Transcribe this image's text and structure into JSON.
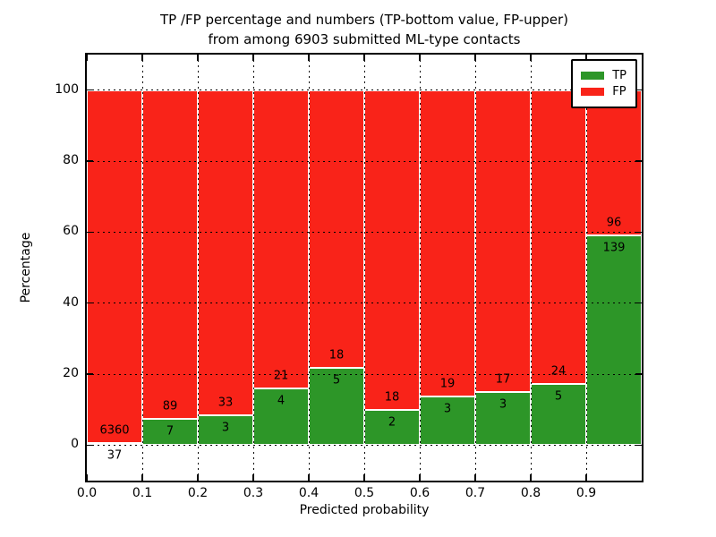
{
  "chart_data": {
    "type": "bar",
    "stacked": true,
    "orientation": "vertical",
    "title_line1": "TP /FP percentage and numbers (TP-bottom value, FP-upper)",
    "title_line2": "from among 6903 submitted ML-type contacts",
    "xlabel": "Predicted probability",
    "ylabel": "Percentage",
    "xlim": [
      0.0,
      1.0
    ],
    "ylim": [
      -10,
      110
    ],
    "xtick_values": [
      0.0,
      0.1,
      0.2,
      0.3,
      0.4,
      0.5,
      0.6,
      0.7,
      0.8,
      0.9
    ],
    "xtick_labels": [
      "0.0",
      "0.1",
      "0.2",
      "0.3",
      "0.4",
      "0.5",
      "0.6",
      "0.7",
      "0.8",
      "0.9"
    ],
    "ytick_values": [
      0,
      20,
      40,
      60,
      80,
      100
    ],
    "ytick_labels": [
      "0",
      "20",
      "40",
      "60",
      "80",
      "100"
    ],
    "bin_width": 0.1,
    "bins_start": [
      0.0,
      0.1,
      0.2,
      0.3,
      0.4,
      0.5,
      0.6,
      0.7,
      0.8,
      0.9
    ],
    "series": [
      {
        "name": "TP",
        "color": "#2d9628",
        "counts": [
          37,
          7,
          3,
          4,
          5,
          2,
          3,
          3,
          5,
          139
        ]
      },
      {
        "name": "FP",
        "color": "#f92319",
        "counts": [
          6360,
          89,
          33,
          21,
          18,
          18,
          19,
          17,
          24,
          96
        ]
      }
    ],
    "tp_percent": [
      0.58,
      7.29,
      8.33,
      16.0,
      21.74,
      10.0,
      13.64,
      15.0,
      17.24,
      59.15
    ],
    "total_contacts": 6903,
    "bar_edge_color": "#ffffff",
    "grid": {
      "on": true,
      "style": "dotted",
      "color": "#000000"
    },
    "legend": {
      "position": "upper right",
      "entries": [
        {
          "label": "TP",
          "color": "#2d9628"
        },
        {
          "label": "FP",
          "color": "#f92319"
        }
      ]
    }
  }
}
